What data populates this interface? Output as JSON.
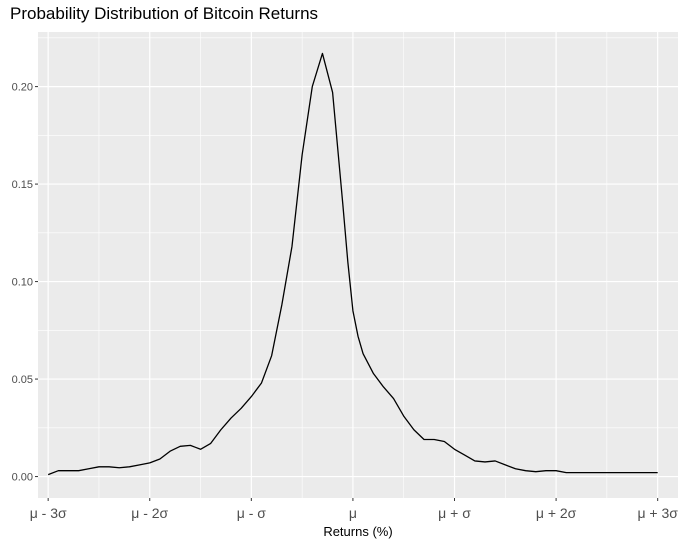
{
  "chart_data": {
    "type": "line",
    "title": "Probability Distribution of Bitcoin Returns",
    "xlabel": "Returns (%)",
    "ylabel": "",
    "x_ticks": [
      "μ - 3σ",
      "μ - 2σ",
      "μ - σ",
      "μ",
      "μ + σ",
      "μ + 2σ",
      "μ + 3σ"
    ],
    "y_ticks": [
      "0.00",
      "0.05",
      "0.10",
      "0.15",
      "0.20"
    ],
    "xlim": [
      -3.1,
      3.2
    ],
    "ylim": [
      -0.011,
      0.228
    ],
    "grid": true,
    "legend": "none",
    "colors": {
      "panel": "#ebebeb",
      "grid": "#ffffff",
      "line": "#000000"
    },
    "series": [
      {
        "x": [
          -3.0,
          -2.9,
          -2.8,
          -2.7,
          -2.6,
          -2.5,
          -2.4,
          -2.3,
          -2.2,
          -2.1,
          -2.0,
          -1.9,
          -1.8,
          -1.7,
          -1.6,
          -1.55,
          -1.5,
          -1.4,
          -1.3,
          -1.25,
          -1.2,
          -1.1,
          -1.0,
          -0.9,
          -0.8,
          -0.7,
          -0.6,
          -0.5,
          -0.4,
          -0.3,
          -0.2,
          -0.1,
          -0.05,
          0.0,
          0.05,
          0.1,
          0.2,
          0.3,
          0.4,
          0.5,
          0.6,
          0.7,
          0.8,
          0.9,
          1.0,
          1.1,
          1.2,
          1.3,
          1.4,
          1.5,
          1.6,
          1.7,
          1.8,
          1.9,
          2.0,
          2.1,
          2.2,
          2.3,
          2.4,
          2.5,
          2.6,
          2.7,
          2.8,
          2.9,
          3.0
        ],
        "y": [
          0.001,
          0.003,
          0.003,
          0.003,
          0.004,
          0.005,
          0.005,
          0.0045,
          0.005,
          0.006,
          0.007,
          0.009,
          0.013,
          0.0155,
          0.016,
          0.015,
          0.014,
          0.017,
          0.024,
          0.027,
          0.03,
          0.035,
          0.041,
          0.048,
          0.062,
          0.088,
          0.118,
          0.165,
          0.2,
          0.217,
          0.197,
          0.14,
          0.11,
          0.085,
          0.072,
          0.063,
          0.053,
          0.046,
          0.04,
          0.031,
          0.024,
          0.019,
          0.019,
          0.018,
          0.014,
          0.011,
          0.008,
          0.0075,
          0.008,
          0.006,
          0.004,
          0.003,
          0.0025,
          0.003,
          0.003,
          0.002,
          0.002,
          0.002,
          0.002,
          0.002,
          0.002,
          0.002,
          0.002,
          0.002,
          0.002
        ]
      }
    ]
  }
}
